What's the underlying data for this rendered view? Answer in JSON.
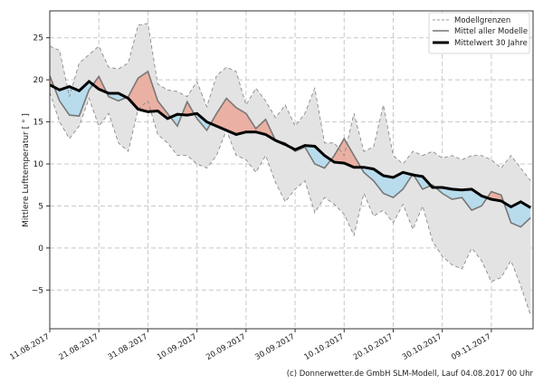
{
  "chart_data": {
    "type": "area",
    "ylabel": "Mittlere Lufttemperatur [ ° ]",
    "xlabel": "",
    "ylim": [
      -9.6,
      28.2
    ],
    "xlim": [
      "2017-08-11",
      "2017-11-17"
    ],
    "grid": true,
    "legend_placement": "top-right",
    "y_ticks": [
      "-5",
      "0",
      "5",
      "10",
      "15",
      "20",
      "25"
    ],
    "x_ticks": [
      {
        "date": "2017-08-11",
        "label": "11.08.2017"
      },
      {
        "date": "2017-08-21",
        "label": "21.08.2017"
      },
      {
        "date": "2017-08-31",
        "label": "31.08.2017"
      },
      {
        "date": "2017-09-10",
        "label": "10.09.2017"
      },
      {
        "date": "2017-09-20",
        "label": "20.09.2017"
      },
      {
        "date": "2017-09-30",
        "label": "30.09.2017"
      },
      {
        "date": "2017-10-10",
        "label": "10.10.2017"
      },
      {
        "date": "2017-10-20",
        "label": "20.10.2017"
      },
      {
        "date": "2017-10-30",
        "label": "30.10.2017"
      },
      {
        "date": "2017-11-09",
        "label": "09.11.2017"
      }
    ],
    "x": [
      "2017-08-11",
      "2017-08-13",
      "2017-08-15",
      "2017-08-17",
      "2017-08-19",
      "2017-08-21",
      "2017-08-23",
      "2017-08-25",
      "2017-08-27",
      "2017-08-29",
      "2017-08-31",
      "2017-09-02",
      "2017-09-04",
      "2017-09-06",
      "2017-09-08",
      "2017-09-10",
      "2017-09-12",
      "2017-09-14",
      "2017-09-16",
      "2017-09-18",
      "2017-09-20",
      "2017-09-22",
      "2017-09-24",
      "2017-09-26",
      "2017-09-28",
      "2017-09-30",
      "2017-10-02",
      "2017-10-04",
      "2017-10-06",
      "2017-10-08",
      "2017-10-10",
      "2017-10-12",
      "2017-10-14",
      "2017-10-16",
      "2017-10-18",
      "2017-10-20",
      "2017-10-22",
      "2017-10-24",
      "2017-10-26",
      "2017-10-28",
      "2017-10-30",
      "2017-11-01",
      "2017-11-03",
      "2017-11-05",
      "2017-11-07",
      "2017-11-09",
      "2017-11-11",
      "2017-11-13",
      "2017-11-15",
      "2017-11-17"
    ],
    "series": [
      {
        "name": "Modellgrenzen",
        "role": "upper",
        "color": "#888888",
        "values": [
          24,
          23.5,
          18,
          22,
          23,
          24,
          21.5,
          21.3,
          22,
          26.5,
          26.7,
          19.5,
          18.8,
          18.6,
          18,
          19.8,
          16.8,
          20.5,
          21.5,
          21,
          17,
          19,
          17.5,
          15.5,
          17,
          14.5,
          16,
          19,
          12.5,
          12.5,
          11,
          16,
          11.5,
          12,
          17,
          11,
          10,
          11.5,
          11,
          11.5,
          10.7,
          11,
          10.5,
          11,
          11,
          10.5,
          9.5,
          11,
          9.5,
          8
        ]
      },
      {
        "name": "Modellgrenzen",
        "role": "lower",
        "color": "#888888",
        "values": [
          18.5,
          15,
          13,
          14.5,
          17.8,
          14.5,
          16,
          12.5,
          11.5,
          16.5,
          17.5,
          13.5,
          12.5,
          11,
          11,
          10,
          9.5,
          11,
          14,
          11,
          10.5,
          9,
          11,
          7.8,
          5.5,
          7,
          8,
          4.2,
          6,
          5.2,
          4,
          1.5,
          6.5,
          3.8,
          4.5,
          3,
          5.2,
          2.2,
          5,
          0.8,
          -1,
          -2,
          -2.5,
          0,
          -1.5,
          -4,
          -3.5,
          -1.5,
          -4.5,
          -8
        ]
      },
      {
        "name": "Mittel aller Modelle",
        "color": "#777777",
        "values": [
          20.5,
          17.5,
          15.8,
          15.7,
          18.8,
          20.4,
          18,
          17.5,
          18,
          20.2,
          21,
          17.5,
          16,
          14.5,
          17.4,
          15.4,
          14,
          16,
          17.8,
          16.7,
          16,
          14.2,
          15.3,
          12.8,
          12.5,
          11.5,
          12,
          10,
          9.5,
          11,
          13,
          11,
          9,
          8,
          6.5,
          6,
          7,
          8.8,
          7,
          7.5,
          6.5,
          5.8,
          6,
          4.5,
          5,
          6.7,
          6.3,
          3,
          2.5,
          3.6
        ]
      },
      {
        "name": "Mittelwert 30 Jahre",
        "color": "#000000",
        "values": [
          19.4,
          18.8,
          19.2,
          18.7,
          19.8,
          18.9,
          18.4,
          18.4,
          17.8,
          16.5,
          16.2,
          16.3,
          15.4,
          15.9,
          15.8,
          16,
          15,
          14.5,
          14,
          13.5,
          13.8,
          13.8,
          13.5,
          12.8,
          12.3,
          11.7,
          12.2,
          12.1,
          11,
          10.2,
          10.1,
          9.6,
          9.6,
          9.4,
          8.6,
          8.4,
          9,
          8.7,
          8.5,
          7.2,
          7.2,
          7,
          6.9,
          7,
          6.2,
          5.8,
          5.6,
          4.9,
          5.5,
          4.8
        ]
      }
    ],
    "colors": {
      "band": "#e3e3e3",
      "above": "#eab0a3",
      "below": "#b8dcec"
    }
  },
  "legend": [
    {
      "label": "Modellgrenzen",
      "style": "dashed"
    },
    {
      "label": "Mittel aller Modelle",
      "style": "gray"
    },
    {
      "label": "Mittelwert 30 Jahre",
      "style": "black"
    }
  ],
  "footer": "(c) Donnerwetter.de GmbH SLM-Modell, Lauf 04.08.2017 00 Uhr"
}
